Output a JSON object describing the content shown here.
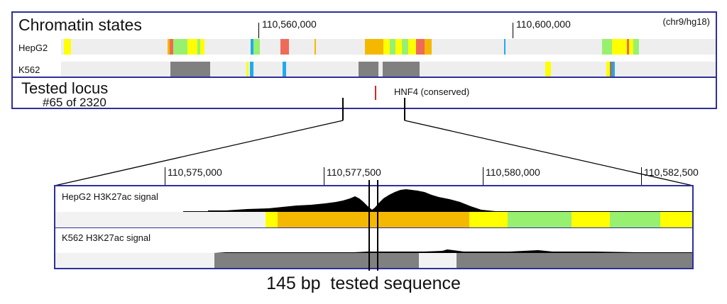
{
  "top_panel": {
    "title": "Chromatin states",
    "genome": "(chr9/hg18)",
    "coordinates": [
      "110,560,000",
      "110,600,000"
    ],
    "tracks": [
      {
        "label": "HepG2"
      },
      {
        "label": "K562"
      }
    ]
  },
  "locus_panel": {
    "title": "Tested locus",
    "subtitle": "#65 of 2320",
    "marker_label": "HNF4 (conserved)"
  },
  "zoom_panel": {
    "coordinates": [
      "110,575,000",
      "110,577,500",
      "110,580,000",
      "110,582,500"
    ],
    "tracks": [
      {
        "label": "HepG2 H3K27ac signal"
      },
      {
        "label": "K562 H3K27ac signal"
      }
    ]
  },
  "caption": "145 bp  tested sequence",
  "colors": {
    "frame": "#2e2e9e",
    "orange_state": "#f5b800",
    "yellow_state": "#ffff00",
    "green_state": "#98f070",
    "red_state": "#f06a5a",
    "cyan_state": "#22aaee",
    "gray_state": "#808080",
    "marker": "#dd2222"
  }
}
